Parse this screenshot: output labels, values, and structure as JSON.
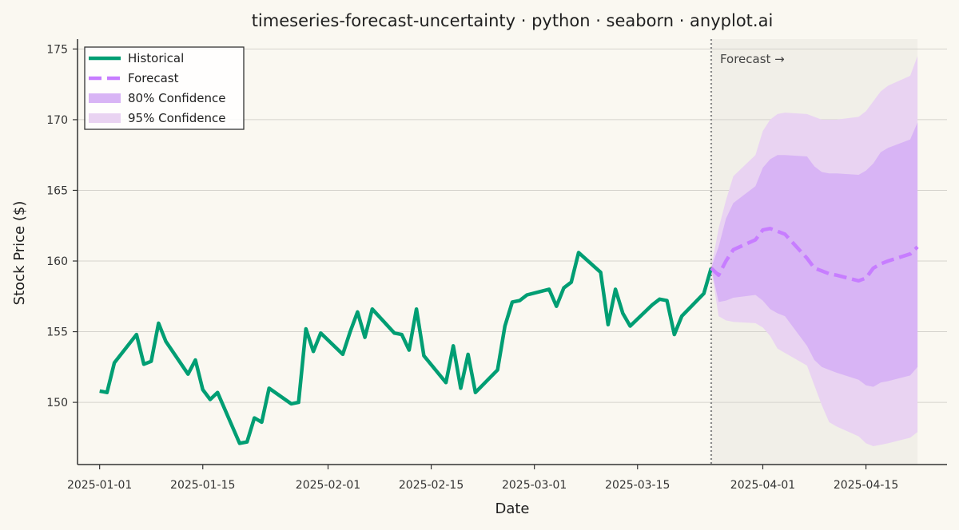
{
  "chart_data": {
    "type": "line",
    "title": "timeseries-forecast-uncertainty · python · seaborn · anyplot.ai",
    "xlabel": "Date",
    "ylabel": "Stock Price ($)",
    "ylim": [
      145.6,
      175.7
    ],
    "xlim": [
      "2024-12-29",
      "2025-04-26"
    ],
    "y_ticks": [
      150,
      155,
      160,
      165,
      170,
      175
    ],
    "x_ticks": [
      "2025-01-01",
      "2025-01-15",
      "2025-02-01",
      "2025-02-15",
      "2025-03-01",
      "2025-03-15",
      "2025-04-01",
      "2025-04-15"
    ],
    "grid": "horizontal",
    "legend_position": "top-left",
    "forecast_start": "2025-03-25",
    "annotation": "Forecast →",
    "colors": {
      "historical": "#009E73",
      "forecast": "#C77DFF",
      "ci80": "#D8B4F5",
      "ci95": "#E9D3F2",
      "forecast_region": "#F1EFE8",
      "vline": "#8a8a8a",
      "grid": "#D5D3CD",
      "axis": "#333333"
    },
    "legend": [
      {
        "label": "Historical",
        "kind": "line",
        "color": "#009E73"
      },
      {
        "label": "Forecast",
        "kind": "dash",
        "color": "#C77DFF"
      },
      {
        "label": "80% Confidence",
        "kind": "patch",
        "color": "#D8B4F5"
      },
      {
        "label": "95% Confidence",
        "kind": "patch",
        "color": "#E9D3F2"
      }
    ],
    "historical": {
      "x": [
        "2025-01-01",
        "2025-01-02",
        "2025-01-03",
        "2025-01-06",
        "2025-01-07",
        "2025-01-08",
        "2025-01-09",
        "2025-01-10",
        "2025-01-13",
        "2025-01-14",
        "2025-01-15",
        "2025-01-16",
        "2025-01-17",
        "2025-01-20",
        "2025-01-21",
        "2025-01-22",
        "2025-01-23",
        "2025-01-24",
        "2025-01-27",
        "2025-01-28",
        "2025-01-29",
        "2025-01-30",
        "2025-01-31",
        "2025-02-03",
        "2025-02-04",
        "2025-02-05",
        "2025-02-06",
        "2025-02-07",
        "2025-02-10",
        "2025-02-11",
        "2025-02-12",
        "2025-02-13",
        "2025-02-14",
        "2025-02-17",
        "2025-02-18",
        "2025-02-19",
        "2025-02-20",
        "2025-02-21",
        "2025-02-24",
        "2025-02-25",
        "2025-02-26",
        "2025-02-27",
        "2025-02-28",
        "2025-03-03",
        "2025-03-04",
        "2025-03-05",
        "2025-03-06",
        "2025-03-07",
        "2025-03-10",
        "2025-03-11",
        "2025-03-12",
        "2025-03-13",
        "2025-03-14",
        "2025-03-17",
        "2025-03-18",
        "2025-03-19",
        "2025-03-20",
        "2025-03-21",
        "2025-03-24",
        "2025-03-25"
      ],
      "y": [
        150.8,
        150.7,
        152.8,
        154.8,
        152.7,
        152.9,
        155.6,
        154.3,
        152.0,
        153.0,
        150.9,
        150.2,
        150.7,
        147.1,
        147.2,
        148.9,
        148.6,
        151.0,
        149.9,
        150.0,
        155.2,
        153.6,
        154.9,
        153.4,
        155.0,
        156.4,
        154.6,
        156.6,
        154.9,
        154.8,
        153.7,
        156.6,
        153.3,
        151.4,
        154.0,
        151.0,
        153.4,
        150.7,
        152.3,
        155.4,
        157.1,
        157.2,
        157.6,
        158.0,
        156.8,
        158.1,
        158.5,
        160.6,
        159.2,
        155.5,
        158.0,
        156.3,
        155.4,
        156.9,
        157.3,
        157.2,
        154.8,
        156.1,
        157.7,
        159.5
      ]
    },
    "forecast": {
      "x": [
        "2025-03-25",
        "2025-03-26",
        "2025-03-27",
        "2025-03-28",
        "2025-03-31",
        "2025-04-01",
        "2025-04-02",
        "2025-04-03",
        "2025-04-04",
        "2025-04-07",
        "2025-04-08",
        "2025-04-09",
        "2025-04-10",
        "2025-04-11",
        "2025-04-14",
        "2025-04-15",
        "2025-04-16",
        "2025-04-17",
        "2025-04-18",
        "2025-04-21",
        "2025-04-22"
      ],
      "y": [
        159.5,
        159.0,
        160.0,
        160.8,
        161.5,
        162.2,
        162.3,
        162.1,
        161.9,
        160.2,
        159.5,
        159.3,
        159.1,
        159.0,
        158.6,
        158.8,
        159.5,
        159.8,
        160.0,
        160.5,
        161.0
      ],
      "ci80_lower": [
        159.5,
        157.1,
        157.2,
        157.4,
        157.6,
        157.2,
        156.6,
        156.3,
        156.1,
        154.0,
        153.0,
        152.5,
        152.3,
        152.1,
        151.6,
        151.2,
        151.1,
        151.4,
        151.5,
        151.9,
        152.5
      ],
      "ci80_upper": [
        159.5,
        161.0,
        163.0,
        164.1,
        165.3,
        166.6,
        167.2,
        167.5,
        167.5,
        167.4,
        166.7,
        166.3,
        166.2,
        166.2,
        166.1,
        166.4,
        166.9,
        167.7,
        168.0,
        168.6,
        169.8
      ],
      "ci95_lower": [
        159.5,
        156.1,
        155.8,
        155.7,
        155.6,
        155.3,
        154.7,
        153.8,
        153.5,
        152.6,
        151.2,
        149.8,
        148.6,
        148.3,
        147.6,
        147.1,
        146.9,
        147.0,
        147.1,
        147.5,
        147.9
      ],
      "ci95_upper": [
        159.5,
        162.3,
        164.3,
        166.0,
        167.5,
        169.2,
        170.0,
        170.4,
        170.5,
        170.4,
        170.2,
        170.0,
        170.0,
        170.0,
        170.2,
        170.6,
        171.3,
        172.0,
        172.4,
        173.1,
        174.5
      ]
    }
  }
}
